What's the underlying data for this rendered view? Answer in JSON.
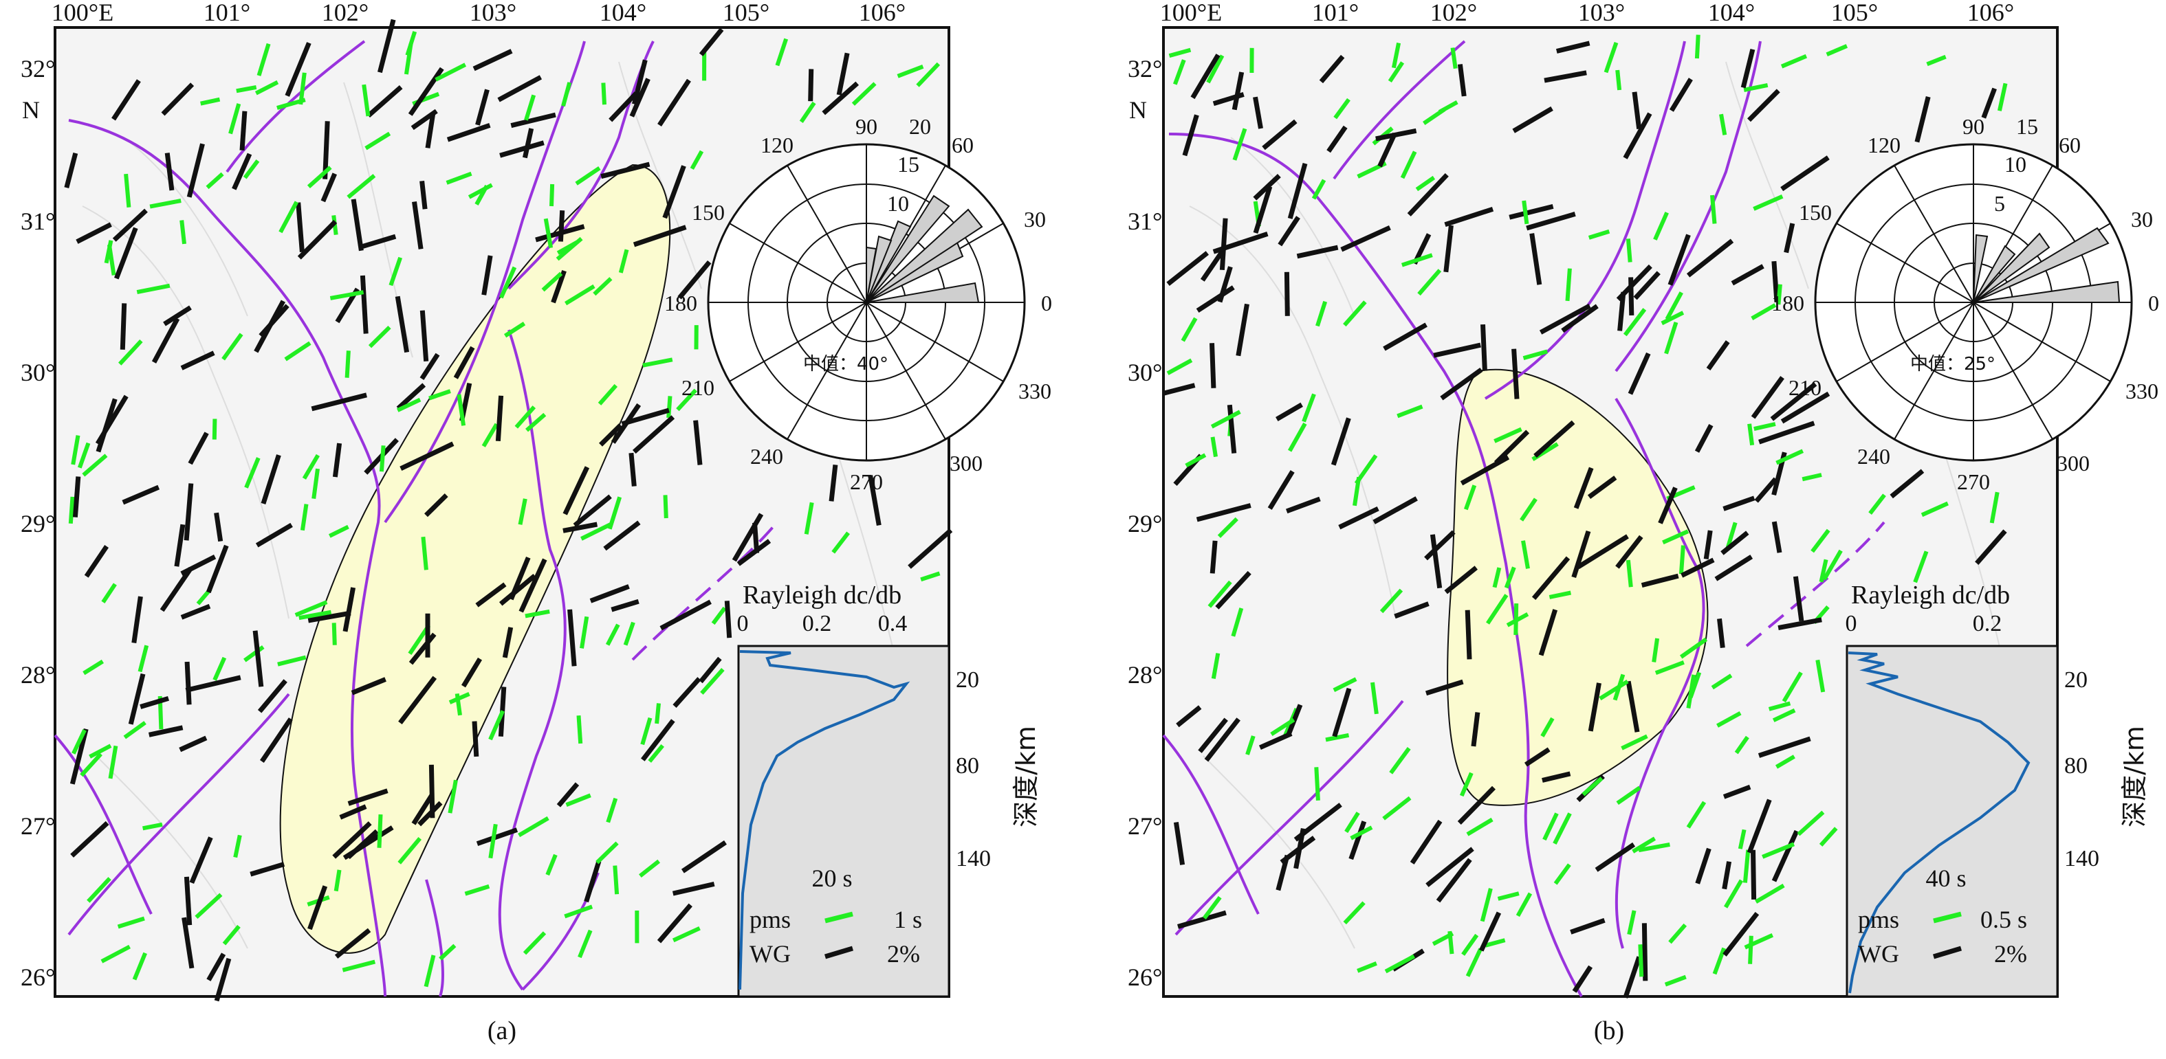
{
  "panels": [
    {
      "id": "a",
      "caption": "(a)",
      "lon_labels": [
        "100°E",
        "101°",
        "102°",
        "103°",
        "104°",
        "105°",
        "106°"
      ],
      "lat_labels": [
        "32°",
        "N",
        "31°",
        "30°",
        "29°",
        "28°",
        "27°",
        "26°"
      ],
      "rose": {
        "angle_labels": [
          "90",
          "120",
          "150",
          "180",
          "210",
          "240",
          "270",
          "300",
          "330",
          "0",
          "30",
          "60"
        ],
        "radius_labels": [
          "20",
          "15",
          "10"
        ],
        "median_label": "中值：40°"
      },
      "sensitivity": {
        "title": "Rayleigh dc/db",
        "x_ticks": [
          "0",
          "0.2",
          "0.4"
        ],
        "y_ticks": [
          "20",
          "80",
          "140"
        ],
        "y_label": "深度/km",
        "period": "20 s",
        "legend_pms": "pms",
        "legend_pms_value": "1 s",
        "legend_wg": "WG",
        "legend_wg_value": "2%"
      }
    },
    {
      "id": "b",
      "caption": "(b)",
      "lon_labels": [
        "100°E",
        "101°",
        "102°",
        "103°",
        "104°",
        "105°",
        "106°"
      ],
      "lat_labels": [
        "32°",
        "N",
        "31°",
        "30°",
        "29°",
        "28°",
        "27°",
        "26°"
      ],
      "rose": {
        "angle_labels": [
          "90",
          "120",
          "150",
          "180",
          "210",
          "240",
          "270",
          "300",
          "330",
          "0",
          "30",
          "60"
        ],
        "radius_labels": [
          "15",
          "10",
          "5"
        ],
        "median_label": "中值：25°"
      },
      "sensitivity": {
        "title": "Rayleigh dc/db",
        "x_ticks": [
          "0",
          "0.2"
        ],
        "y_ticks": [
          "20",
          "80",
          "140"
        ],
        "y_label": "深度/km",
        "period": "40 s",
        "legend_pms": "pms",
        "legend_pms_value": "0.5 s",
        "legend_wg": "WG",
        "legend_wg_value": "2%"
      }
    }
  ],
  "colors": {
    "pms_bar": "#22ee22",
    "wg_bar": "#111111",
    "fault": "#9933dd",
    "anomaly_region": "#fbfbd0",
    "rose_bar": "#cfcfcf",
    "kernel_curve": "#1a66b0"
  }
}
